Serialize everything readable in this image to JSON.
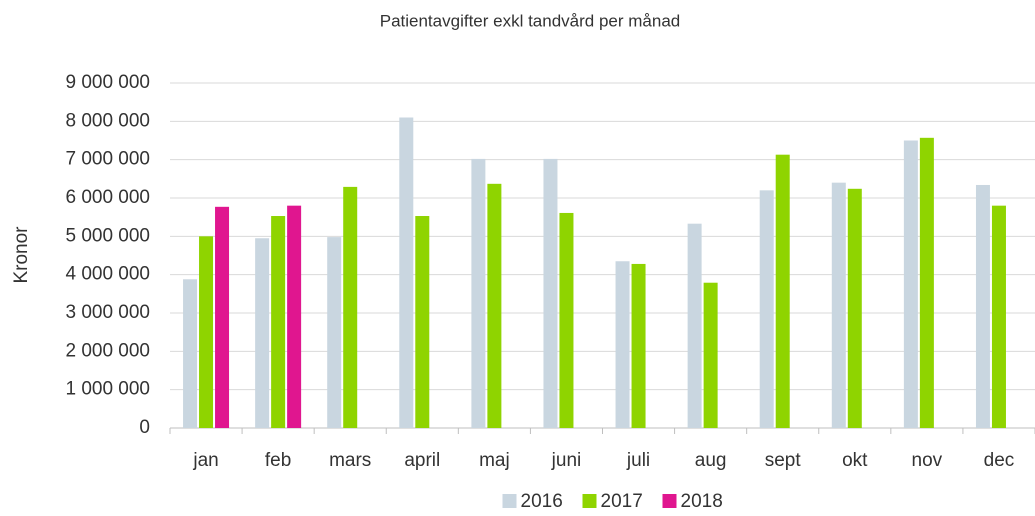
{
  "chart_data": {
    "type": "bar",
    "title": "Patientavgifter exkl tandvård per månad",
    "y_label": "Kronor",
    "categories": [
      "jan",
      "feb",
      "mars",
      "april",
      "maj",
      "juni",
      "juli",
      "aug",
      "sept",
      "okt",
      "nov",
      "dec"
    ],
    "series": [
      {
        "name": "2016",
        "color": "#c9d6e0",
        "values": [
          3880000,
          4950000,
          4980000,
          8100000,
          7020000,
          7020000,
          4350000,
          5330000,
          6200000,
          6400000,
          7500000,
          6340000
        ]
      },
      {
        "name": "2017",
        "color": "#8fd400",
        "values": [
          5000000,
          5530000,
          6290000,
          5530000,
          6370000,
          5610000,
          4280000,
          3790000,
          7130000,
          6240000,
          7570000,
          5800000
        ]
      },
      {
        "name": "2018",
        "color": "#e0168f",
        "values": [
          5770000,
          5800000,
          null,
          null,
          null,
          null,
          null,
          null,
          null,
          null,
          null,
          null
        ]
      }
    ],
    "ylim": [
      0,
      9000000
    ],
    "yticks": [
      0,
      {
        "value": 1000000,
        "label": "1 000 000"
      },
      {
        "value": 2000000,
        "label": "2 000 000"
      },
      {
        "value": 3000000,
        "label": "3 000 000"
      },
      {
        "value": 4000000,
        "label": "4 000 000"
      },
      {
        "value": 5000000,
        "label": "5 000 000"
      },
      {
        "value": 6000000,
        "label": "6 000 000"
      },
      {
        "value": 7000000,
        "label": "7 000 000"
      },
      {
        "value": 8000000,
        "label": "8 000 000"
      },
      {
        "value": 9000000,
        "label": "9 000 000"
      }
    ],
    "grid": true,
    "legend": "bottom"
  }
}
